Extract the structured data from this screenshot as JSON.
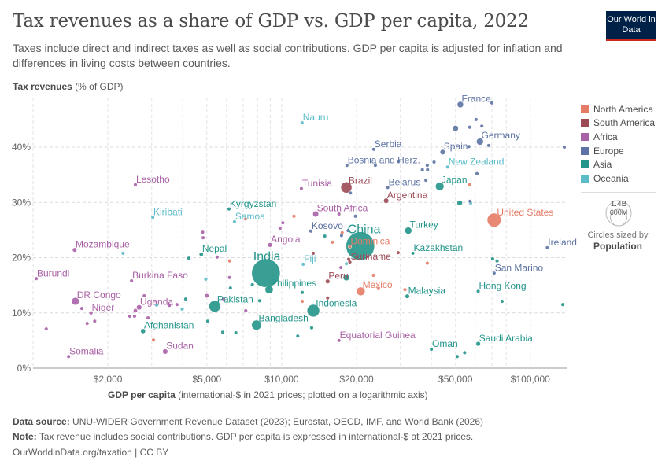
{
  "header": {
    "title": "Tax revenues as a share of GDP vs. GDP per capita, 2022",
    "subtitle": "Taxes include direct and indirect taxes as well as social contributions. GDP per capita is adjusted for inflation and differences in living costs between countries.",
    "logo": "Our World in Data"
  },
  "footer": {
    "source_label": "Data source:",
    "source": " UNU-WIDER Government Revenue Dataset (2023); Eurostat, OECD, IMF, and World Bank (2026)",
    "note_label": "Note:",
    "note": " Tax revenue includes social contributions. GDP per capita is expressed in international-$ at 2021 prices.",
    "credit": "OurWorldinData.org/taxation | CC BY"
  },
  "chart_data": {
    "type": "scatter",
    "title": "Tax revenues as a share of GDP vs. GDP per capita, 2022",
    "ylabel_bold": "Tax revenues",
    "ylabel_rest": " (% of GDP)",
    "xlabel_bold": "GDP per capita",
    "xlabel_rest": " (international-$ in 2021 prices; plotted on a logarithmic axis)",
    "x_scale": "log",
    "xlim": [
      1000,
      140000
    ],
    "ylim": [
      0,
      48
    ],
    "x_ticks": [
      {
        "v": 2000,
        "label": "$2,000"
      },
      {
        "v": 5000,
        "label": "$5,000"
      },
      {
        "v": 10000,
        "label": "$10,000"
      },
      {
        "v": 20000,
        "label": "$20,000"
      },
      {
        "v": 50000,
        "label": "$50,000"
      },
      {
        "v": 100000,
        "label": "$100,000"
      }
    ],
    "y_ticks": [
      {
        "v": 0,
        "label": "0%"
      },
      {
        "v": 10,
        "label": "10%"
      },
      {
        "v": 20,
        "label": "20%"
      },
      {
        "v": 30,
        "label": "30%"
      },
      {
        "v": 40,
        "label": "40%"
      }
    ],
    "grid": true,
    "legend_placement": "right",
    "regions": [
      {
        "name": "North America",
        "color": "#E47C66"
      },
      {
        "name": "South America",
        "color": "#9B4A55"
      },
      {
        "name": "Africa",
        "color": "#A961A6"
      },
      {
        "name": "Europe",
        "color": "#5D73A4"
      },
      {
        "name": "Asia",
        "color": "#23958A"
      },
      {
        "name": "Oceania",
        "color": "#5BBBC8"
      }
    ],
    "size_legend": {
      "caption": "Circles sized by",
      "variable": "Population",
      "large": "1.4B",
      "small": "600M"
    },
    "points": [
      {
        "country": "China",
        "region": "Asia",
        "gdp": 20700,
        "tax": 22.1,
        "pop": 1412
      },
      {
        "country": "India",
        "region": "Asia",
        "gdp": 8640,
        "tax": 17.2,
        "pop": 1417
      },
      {
        "country": "United States",
        "region": "North America",
        "gdp": 71500,
        "tax": 26.8,
        "pop": 333
      },
      {
        "country": "Indonesia",
        "region": "Asia",
        "gdp": 13400,
        "tax": 10.4,
        "pop": 275
      },
      {
        "country": "Pakistan",
        "region": "Asia",
        "gdp": 5380,
        "tax": 11.2,
        "pop": 235
      },
      {
        "country": "Brazil",
        "region": "South America",
        "gdp": 18200,
        "tax": 32.7,
        "pop": 215
      },
      {
        "country": "Bangladesh",
        "region": "Asia",
        "gdp": 7920,
        "tax": 7.8,
        "pop": 171
      },
      {
        "country": "Mexico",
        "region": "North America",
        "gdp": 20800,
        "tax": 13.9,
        "pop": 127
      },
      {
        "country": "Japan",
        "region": "Asia",
        "gdp": 43200,
        "tax": 32.9,
        "pop": 124
      },
      {
        "country": "Philippines",
        "region": "Asia",
        "gdp": 8900,
        "tax": 14.2,
        "pop": 115
      },
      {
        "country": "DR Congo",
        "region": "Africa",
        "gdp": 1480,
        "tax": 12.1,
        "pop": 99
      },
      {
        "country": "Turkey",
        "region": "Asia",
        "gdp": 32300,
        "tax": 24.9,
        "pop": 85
      },
      {
        "country": "Germany",
        "region": "Europe",
        "gdp": 62700,
        "tax": 41.0,
        "pop": 84
      },
      {
        "country": "France",
        "region": "Europe",
        "gdp": 52300,
        "tax": 47.7,
        "pop": 68
      },
      {
        "country": "South Africa",
        "region": "Africa",
        "gdp": 13700,
        "tax": 27.9,
        "pop": 60
      },
      {
        "country": "Spain",
        "region": "Europe",
        "gdp": 44400,
        "tax": 39.1,
        "pop": 48
      },
      {
        "country": "Uganda",
        "region": "Africa",
        "gdp": 2670,
        "tax": 11.0,
        "pop": 47
      },
      {
        "country": "Sudan",
        "region": "Africa",
        "gdp": 3400,
        "tax": 3.0,
        "pop": 47
      },
      {
        "country": "Argentina",
        "region": "South America",
        "gdp": 26300,
        "tax": 30.3,
        "pop": 46
      },
      {
        "country": "Afghanistan",
        "region": "Asia",
        "gdp": 2770,
        "tax": 6.7,
        "pop": 41
      },
      {
        "country": "Angola",
        "region": "Africa",
        "gdp": 8970,
        "tax": 22.3,
        "pop": 36
      },
      {
        "country": "Saudi Arabia",
        "region": "Asia",
        "gdp": 61700,
        "tax": 4.4,
        "pop": 36
      },
      {
        "country": "Peru",
        "region": "South America",
        "gdp": 15300,
        "tax": 15.7,
        "pop": 34
      },
      {
        "country": "Malaysia",
        "region": "Asia",
        "gdp": 32000,
        "tax": 13.0,
        "pop": 34
      },
      {
        "country": "Mozambique",
        "region": "Africa",
        "gdp": 1470,
        "tax": 21.4,
        "pop": 33
      },
      {
        "country": "Nepal",
        "region": "Asia",
        "gdp": 4750,
        "tax": 20.6,
        "pop": 30
      },
      {
        "country": "Niger",
        "region": "Africa",
        "gdp": 1710,
        "tax": 10.0,
        "pop": 26
      },
      {
        "country": "Burkina Faso",
        "region": "Africa",
        "gdp": 2490,
        "tax": 15.8,
        "pop": 22
      },
      {
        "country": "Kazakhstan",
        "region": "Asia",
        "gdp": 33700,
        "tax": 20.8,
        "pop": 19.6
      },
      {
        "country": "Somalia",
        "region": "Africa",
        "gdp": 1390,
        "tax": 2.1,
        "pop": 17
      },
      {
        "country": "Burundi",
        "region": "Africa",
        "gdp": 1030,
        "tax": 16.2,
        "pop": 13
      },
      {
        "country": "Tunisia",
        "region": "Africa",
        "gdp": 12000,
        "tax": 32.5,
        "pop": 12
      },
      {
        "country": "Belarus",
        "region": "Europe",
        "gdp": 26700,
        "tax": 32.7,
        "pop": 9.2
      },
      {
        "country": "Hong Kong",
        "region": "Asia",
        "gdp": 61700,
        "tax": 13.9,
        "pop": 7.3
      },
      {
        "country": "Serbia",
        "region": "Europe",
        "gdp": 23450,
        "tax": 39.6,
        "pop": 6.7
      },
      {
        "country": "Kyrgyzstan",
        "region": "Asia",
        "gdp": 6140,
        "tax": 28.8,
        "pop": 6.7
      },
      {
        "country": "New Zealand",
        "region": "Oceania",
        "gdp": 46500,
        "tax": 36.4,
        "pop": 5.1
      },
      {
        "country": "Ireland",
        "region": "Europe",
        "gdp": 117000,
        "tax": 21.8,
        "pop": 5.1
      },
      {
        "country": "Oman",
        "region": "Asia",
        "gdp": 40000,
        "tax": 3.4,
        "pop": 4.6
      },
      {
        "country": "Bosnia and Herz.",
        "region": "Europe",
        "gdp": 18300,
        "tax": 36.7,
        "pop": 3.2
      },
      {
        "country": "Lesotho",
        "region": "Africa",
        "gdp": 2580,
        "tax": 33.2,
        "pop": 2.3
      },
      {
        "country": "Kosovo",
        "region": "Europe",
        "gdp": 13100,
        "tax": 24.8,
        "pop": 1.8
      },
      {
        "country": "Equatorial Guinea",
        "region": "Africa",
        "gdp": 17000,
        "tax": 5.0,
        "pop": 1.7
      },
      {
        "country": "Fiji",
        "region": "Oceania",
        "gdp": 12200,
        "tax": 18.8,
        "pop": 0.9
      },
      {
        "country": "Suriname",
        "region": "South America",
        "gdp": 18800,
        "tax": 19.2,
        "pop": 0.6
      },
      {
        "country": "Samoa",
        "region": "Oceania",
        "gdp": 6460,
        "tax": 26.5,
        "pop": 0.2
      },
      {
        "country": "Kiribati",
        "region": "Oceania",
        "gdp": 3030,
        "tax": 27.3,
        "pop": 0.13
      },
      {
        "country": "Dominica",
        "region": "North America",
        "gdp": 18800,
        "tax": 22.0,
        "pop": 0.07
      },
      {
        "country": "San Marino",
        "region": "Europe",
        "gdp": 71500,
        "tax": 17.2,
        "pop": 0.03
      },
      {
        "country": "Nauru",
        "region": "Oceania",
        "gdp": 12080,
        "tax": 44.4,
        "pop": 0.01
      },
      {
        "region": "Europe",
        "gdp": 70000,
        "tax": 48.0,
        "pop": 5
      },
      {
        "region": "Europe",
        "gdp": 60500,
        "tax": 45.0,
        "pop": 5
      },
      {
        "region": "Europe",
        "gdp": 57000,
        "tax": 43.6,
        "pop": 9
      },
      {
        "region": "Europe",
        "gdp": 63800,
        "tax": 43.8,
        "pop": 5
      },
      {
        "region": "Europe",
        "gdp": 50000,
        "tax": 43.4,
        "pop": 59
      },
      {
        "region": "Europe",
        "gdp": 68000,
        "tax": 40.3,
        "pop": 17
      },
      {
        "region": "Europe",
        "gdp": 137000,
        "tax": 40.0,
        "pop": 0.6
      },
      {
        "region": "Europe",
        "gdp": 56600,
        "tax": 40.1,
        "pop": 9
      },
      {
        "region": "Europe",
        "gdp": 41000,
        "tax": 37.3,
        "pop": 10
      },
      {
        "region": "Europe",
        "gdp": 38500,
        "tax": 36.7,
        "pop": 5
      },
      {
        "region": "Europe",
        "gdp": 36800,
        "tax": 35.9,
        "pop": 2
      },
      {
        "region": "Europe",
        "gdp": 38600,
        "tax": 35.9,
        "pop": 2
      },
      {
        "region": "Europe",
        "gdp": 29500,
        "tax": 37.4,
        "pop": 4
      },
      {
        "region": "Europe",
        "gdp": 23800,
        "tax": 36.7,
        "pop": 3
      },
      {
        "region": "Europe",
        "gdp": 38000,
        "tax": 34.0,
        "pop": 3
      },
      {
        "region": "Europe",
        "gdp": 61000,
        "tax": 35.2,
        "pop": 5
      },
      {
        "region": "Europe",
        "gdp": 18900,
        "tax": 31.7,
        "pop": 3
      },
      {
        "region": "Europe",
        "gdp": 57200,
        "tax": 30.2,
        "pop": 8
      },
      {
        "region": "Europe",
        "gdp": 18500,
        "tax": 24.9,
        "pop": 2
      },
      {
        "region": "Europe",
        "gdp": 17400,
        "tax": 24.0,
        "pop": 2
      },
      {
        "region": "Europe",
        "gdp": 19800,
        "tax": 27.5,
        "pop": 2
      },
      {
        "region": "Oceania",
        "gdp": 57500,
        "tax": 29.9,
        "pop": 26
      },
      {
        "region": "Oceania",
        "gdp": 2300,
        "tax": 20.8,
        "pop": 0.5
      },
      {
        "region": "Oceania",
        "gdp": 3140,
        "tax": 11.4,
        "pop": 0.5
      },
      {
        "region": "Oceania",
        "gdp": 3980,
        "tax": 10.7,
        "pop": 0.7
      },
      {
        "region": "Oceania",
        "gdp": 4950,
        "tax": 16.1,
        "pop": 0.5
      },
      {
        "region": "Oceania",
        "gdp": 18200,
        "tax": 18.9,
        "pop": 0.3
      },
      {
        "region": "Asia",
        "gdp": 52000,
        "tax": 29.9,
        "pop": 52
      },
      {
        "region": "Asia",
        "gdp": 70500,
        "tax": 19.8,
        "pop": 3
      },
      {
        "region": "Asia",
        "gdp": 73500,
        "tax": 19.4,
        "pop": 3
      },
      {
        "region": "Asia",
        "gdp": 77000,
        "tax": 12.1,
        "pop": 3
      },
      {
        "region": "Asia",
        "gdp": 135000,
        "tax": 11.5,
        "pop": 2
      },
      {
        "region": "Asia",
        "gdp": 50800,
        "tax": 2.1,
        "pop": 3
      },
      {
        "region": "Asia",
        "gdp": 54400,
        "tax": 2.8,
        "pop": 3
      },
      {
        "region": "Asia",
        "gdp": 14900,
        "tax": 23.9,
        "pop": 3
      },
      {
        "region": "Asia",
        "gdp": 7620,
        "tax": 15.1,
        "pop": 3
      },
      {
        "region": "Asia",
        "gdp": 6220,
        "tax": 14.5,
        "pop": 3
      },
      {
        "region": "Asia",
        "gdp": 8150,
        "tax": 12.2,
        "pop": 3
      },
      {
        "region": "Asia",
        "gdp": 6540,
        "tax": 6.4,
        "pop": 17
      },
      {
        "region": "Asia",
        "gdp": 5790,
        "tax": 6.5,
        "pop": 3
      },
      {
        "region": "Asia",
        "gdp": 5040,
        "tax": 8.5,
        "pop": 3
      },
      {
        "region": "Asia",
        "gdp": 4230,
        "tax": 19.9,
        "pop": 3
      },
      {
        "region": "Asia",
        "gdp": 4110,
        "tax": 12.5,
        "pop": 3
      },
      {
        "region": "Asia",
        "gdp": 11600,
        "tax": 5.8,
        "pop": 3
      },
      {
        "region": "Asia",
        "gdp": 13200,
        "tax": 7.3,
        "pop": 5
      },
      {
        "region": "Asia",
        "gdp": 12100,
        "tax": 13.7,
        "pop": 22
      },
      {
        "region": "Asia",
        "gdp": 18200,
        "tax": 16.4,
        "pop": 71
      },
      {
        "region": "Africa",
        "gdp": 1130,
        "tax": 7.1,
        "pop": 5
      },
      {
        "region": "Africa",
        "gdp": 1570,
        "tax": 10.8,
        "pop": 5
      },
      {
        "region": "Africa",
        "gdp": 1770,
        "tax": 8.5,
        "pop": 8
      },
      {
        "region": "Africa",
        "gdp": 1650,
        "tax": 8.1,
        "pop": 8
      },
      {
        "region": "Africa",
        "gdp": 2580,
        "tax": 10.4,
        "pop": 30
      },
      {
        "region": "Africa",
        "gdp": 2560,
        "tax": 9.4,
        "pop": 5
      },
      {
        "region": "Africa",
        "gdp": 2800,
        "tax": 13.1,
        "pop": 5
      },
      {
        "region": "Africa",
        "gdp": 2900,
        "tax": 9.1,
        "pop": 5
      },
      {
        "region": "Africa",
        "gdp": 3530,
        "tax": 11.4,
        "pop": 30
      },
      {
        "region": "Africa",
        "gdp": 3790,
        "tax": 11.5,
        "pop": 3
      },
      {
        "region": "Africa",
        "gdp": 2450,
        "tax": 9.4,
        "pop": 5
      },
      {
        "region": "Africa",
        "gdp": 4830,
        "tax": 23.6,
        "pop": 3
      },
      {
        "region": "Africa",
        "gdp": 4810,
        "tax": 24.6,
        "pop": 3
      },
      {
        "region": "Africa",
        "gdp": 5500,
        "tax": 20.1,
        "pop": 3
      },
      {
        "region": "Africa",
        "gdp": 6170,
        "tax": 16.4,
        "pop": 3
      },
      {
        "region": "Africa",
        "gdp": 5840,
        "tax": 12.5,
        "pop": 10
      },
      {
        "region": "Africa",
        "gdp": 5000,
        "tax": 13.1,
        "pop": 30
      },
      {
        "region": "Africa",
        "gdp": 7170,
        "tax": 10.4,
        "pop": 3
      },
      {
        "region": "Africa",
        "gdp": 9850,
        "tax": 25.3,
        "pop": 3
      },
      {
        "region": "Africa",
        "gdp": 10100,
        "tax": 26.3,
        "pop": 3
      },
      {
        "region": "Africa",
        "gdp": 17300,
        "tax": 18.2,
        "pop": 2
      },
      {
        "region": "Africa",
        "gdp": 17000,
        "tax": 27.9,
        "pop": 2
      },
      {
        "region": "North America",
        "gdp": 7150,
        "tax": 27.0,
        "pop": 2
      },
      {
        "region": "North America",
        "gdp": 11200,
        "tax": 27.5,
        "pop": 3
      },
      {
        "region": "North America",
        "gdp": 6180,
        "tax": 19.4,
        "pop": 3
      },
      {
        "region": "North America",
        "gdp": 12100,
        "tax": 12.1,
        "pop": 3
      },
      {
        "region": "North America",
        "gdp": 16000,
        "tax": 22.8,
        "pop": 3
      },
      {
        "region": "North America",
        "gdp": 17500,
        "tax": 24.5,
        "pop": 3
      },
      {
        "region": "North America",
        "gdp": 57000,
        "tax": 33.2,
        "pop": 8
      },
      {
        "region": "North America",
        "gdp": 38500,
        "tax": 19.0,
        "pop": 1
      },
      {
        "region": "North America",
        "gdp": 23400,
        "tax": 16.8,
        "pop": 3
      },
      {
        "region": "North America",
        "gdp": 24500,
        "tax": 14.4,
        "pop": 3
      },
      {
        "region": "North America",
        "gdp": 31300,
        "tax": 14.2,
        "pop": 3
      },
      {
        "region": "North America",
        "gdp": 3050,
        "tax": 5.1,
        "pop": 3
      },
      {
        "region": "South America",
        "gdp": 22200,
        "tax": 20.2,
        "pop": 3
      },
      {
        "region": "South America",
        "gdp": 18600,
        "tax": 19.7,
        "pop": 18
      },
      {
        "region": "South America",
        "gdp": 29400,
        "tax": 20.9,
        "pop": 3
      },
      {
        "region": "South America",
        "gdp": 15300,
        "tax": 12.7,
        "pop": 3
      },
      {
        "region": "South America",
        "gdp": 13400,
        "tax": 20.8,
        "pop": 3
      }
    ]
  }
}
